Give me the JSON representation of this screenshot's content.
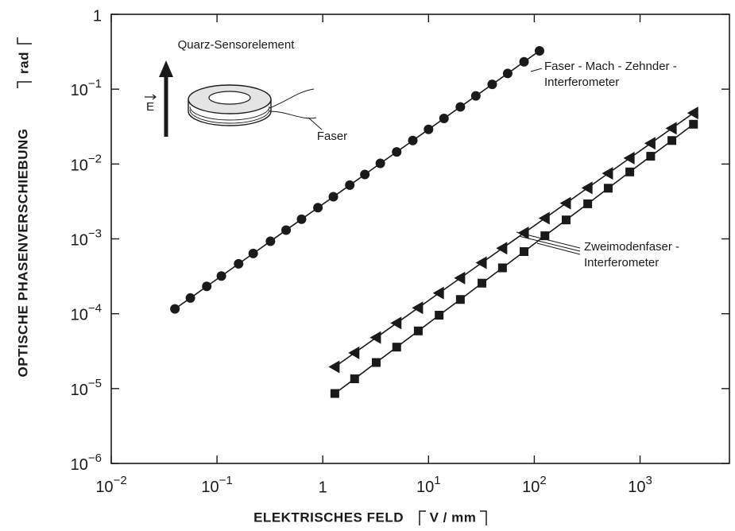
{
  "chart_data": {
    "type": "scatter",
    "xlabel": "ELEKTRISCHES FELD",
    "xlabel_unit": "V / mm",
    "ylabel": "OPTISCHE PHASENVERSCHIEBUNG",
    "ylabel_unit": "rad",
    "log_x": true,
    "log_y": true,
    "xlim": [
      0.01,
      7000
    ],
    "ylim": [
      1e-06,
      1
    ],
    "xticks": [
      {
        "value": 0.01,
        "label": "10−2"
      },
      {
        "value": 0.1,
        "label": "10−1"
      },
      1,
      {
        "value": 10,
        "label": "101"
      },
      {
        "value": 100,
        "label": "102"
      },
      {
        "value": 1000,
        "label": "103"
      }
    ],
    "yticks": [
      {
        "value": 1e-06,
        "label": "10−6"
      },
      {
        "value": 1e-05,
        "label": "10−5"
      },
      {
        "value": 0.0001,
        "label": "10−4"
      },
      {
        "value": 0.001,
        "label": "10−3"
      },
      {
        "value": 0.01,
        "label": "10−2"
      },
      {
        "value": 0.1,
        "label": "10−1"
      },
      1
    ],
    "annotations": {
      "sensor": "Quarz-Sensorelement",
      "field": "E",
      "fiber": "Faser",
      "mach_zehnder": [
        "Faser - Mach - Zehnder -",
        "Interferometer"
      ],
      "two_mode": [
        "Zweimodenfaser -",
        "Interferometer"
      ]
    },
    "series": [
      {
        "marker": "circle",
        "color": "#1a1a1a",
        "x": [
          0.04,
          0.056,
          0.08,
          0.11,
          0.16,
          0.22,
          0.32,
          0.45,
          0.63,
          0.9,
          1.26,
          1.8,
          2.5,
          3.5,
          5,
          7.1,
          10,
          14,
          20,
          28,
          40,
          56,
          80,
          112
        ],
        "values": [
          0.000116,
          0.000162,
          0.000232,
          0.000319,
          0.000464,
          0.000638,
          0.000928,
          0.00131,
          0.00183,
          0.00261,
          0.00365,
          0.00522,
          0.00725,
          0.0102,
          0.0145,
          0.0206,
          0.029,
          0.0406,
          0.058,
          0.0812,
          0.116,
          0.162,
          0.232,
          0.325
        ]
      },
      {
        "marker": "triangle",
        "color": "#1a1a1a",
        "x": [
          1.3,
          2,
          3.2,
          5,
          8,
          12.6,
          20,
          32,
          50,
          80,
          126,
          200,
          320,
          500,
          800,
          1260,
          2000,
          3200
        ],
        "values": [
          1.95e-05,
          3e-05,
          4.8e-05,
          7.5e-05,
          0.00012,
          0.000189,
          0.0003,
          0.00048,
          0.00075,
          0.0012,
          0.00189,
          0.003,
          0.0048,
          0.0075,
          0.012,
          0.0189,
          0.03,
          0.048
        ]
      },
      {
        "marker": "square",
        "color": "#1a1a1a",
        "x": [
          1.3,
          2,
          3.2,
          5,
          8,
          12.6,
          20,
          32,
          50,
          80,
          126,
          200,
          320,
          500,
          800,
          1260,
          2000,
          3200
        ],
        "values": [
          8.6e-06,
          1.35e-05,
          2.23e-05,
          3.58e-05,
          5.89e-05,
          9.56e-05,
          0.000155,
          0.000256,
          0.00041,
          0.000676,
          0.0011,
          0.00179,
          0.00294,
          0.00475,
          0.00784,
          0.0127,
          0.0206,
          0.034
        ]
      }
    ]
  }
}
